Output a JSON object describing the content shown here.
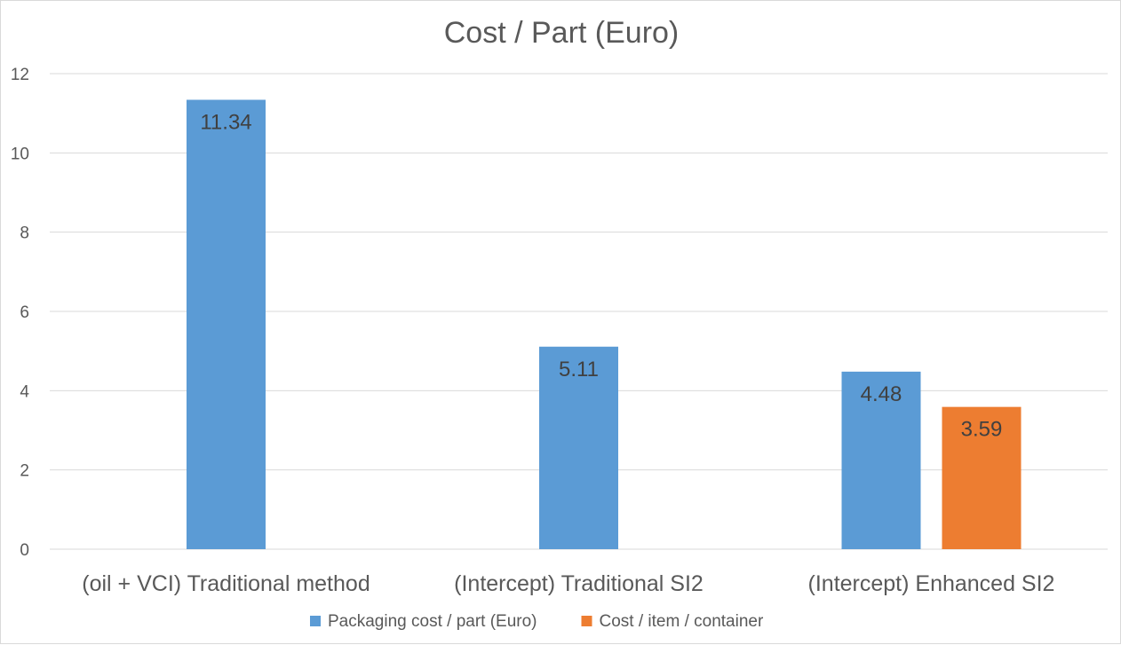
{
  "chart_data": {
    "type": "bar",
    "title": "Cost / Part (Euro)",
    "xlabel": "",
    "ylabel": "",
    "ylim": [
      0,
      12
    ],
    "yticks": [
      0,
      2,
      4,
      6,
      8,
      10,
      12
    ],
    "grid": true,
    "legend_position": "bottom",
    "categories": [
      "(oil + VCI) Traditional method",
      "(Intercept) Traditional SI2",
      "(Intercept) Enhanced SI2"
    ],
    "series": [
      {
        "name": "Packaging cost / part (Euro)",
        "color": "#5b9bd5",
        "values": [
          11.34,
          5.11,
          4.48
        ],
        "labels": [
          "11.34",
          "5.11",
          "4.48"
        ]
      },
      {
        "name": "Cost / item / container",
        "color": "#ed7d31",
        "values": [
          null,
          null,
          3.59
        ],
        "labels": [
          "",
          "",
          "3.59"
        ]
      }
    ]
  }
}
